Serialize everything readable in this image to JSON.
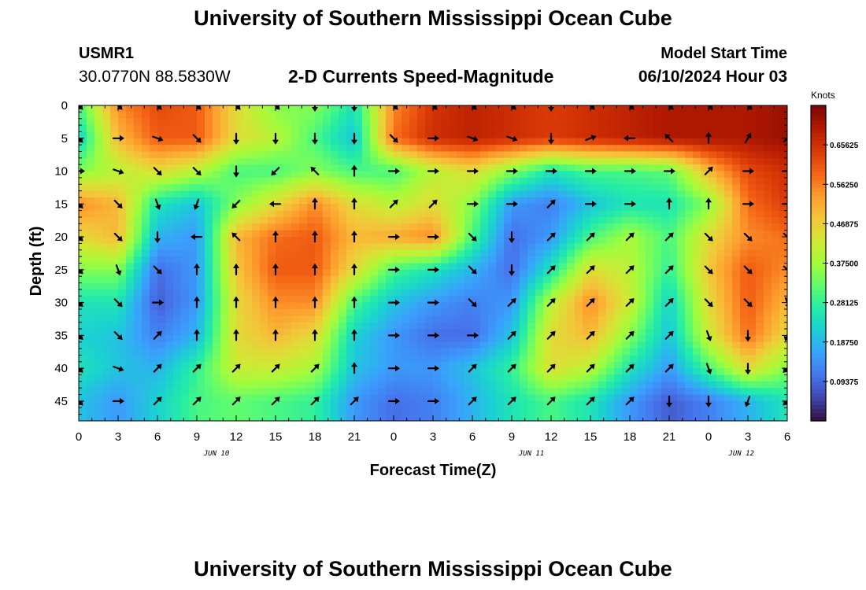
{
  "header": {
    "title": "University of Southern Mississippi Ocean Cube",
    "station_id": "USMR1",
    "station_coords": "30.0770N  88.5830W",
    "subtitle": "2-D Currents Speed-Magnitude",
    "model_start_label": "Model Start Time",
    "model_start_value": "06/10/2024 Hour 03"
  },
  "footer": {
    "title": "University of Southern Mississippi Ocean Cube"
  },
  "chart_data": {
    "type": "heatmap",
    "title": "2-D Currents Speed-Magnitude",
    "xlabel": "Forecast Time(Z)",
    "ylabel": "Depth (ft)",
    "x_tick_labels": [
      "0",
      "3",
      "6",
      "9",
      "12",
      "15",
      "18",
      "21",
      "0",
      "3",
      "6",
      "9",
      "12",
      "15",
      "18",
      "21",
      "0",
      "3",
      "6"
    ],
    "x_range_hours": [
      0,
      54
    ],
    "day_labels": [
      {
        "hour": 10.5,
        "label": "JUN 10"
      },
      {
        "hour": 34.5,
        "label": "JUN 11"
      },
      {
        "hour": 50.5,
        "label": "JUN 12"
      }
    ],
    "y_ticks": [
      0,
      5,
      10,
      15,
      20,
      25,
      30,
      35,
      40,
      45
    ],
    "y_range": [
      0,
      48
    ],
    "y_inverted": true,
    "colorbar": {
      "label": "Knots",
      "range": [
        0,
        0.75
      ],
      "tick_values": [
        0.09375,
        0.1875,
        0.28125,
        0.375,
        0.46875,
        0.5625,
        0.65625
      ],
      "tick_labels": [
        "0.09375",
        "0.18750",
        "0.28125",
        "0.37500",
        "0.46875",
        "0.56250",
        "0.65625"
      ],
      "colors": [
        "#30123b",
        "#4145ab",
        "#4675ed",
        "#39a2fc",
        "#1bcfd4",
        "#24eca6",
        "#61fc6c",
        "#a4fc3b",
        "#d1e834",
        "#f3c63a",
        "#fe9b2d",
        "#f36315",
        "#d93806",
        "#b11901",
        "#7a0402"
      ]
    },
    "speed_grid_knots": {
      "x_hours": [
        0,
        3,
        6,
        9,
        12,
        15,
        18,
        21,
        24,
        27,
        30,
        33,
        36,
        39,
        42,
        45,
        48,
        51,
        54
      ],
      "depth_ft": [
        0,
        5,
        10,
        15,
        20,
        25,
        30,
        35,
        40,
        45
      ],
      "values": [
        [
          0.3,
          0.55,
          0.62,
          0.6,
          0.45,
          0.35,
          0.35,
          0.25,
          0.55,
          0.65,
          0.68,
          0.66,
          0.64,
          0.66,
          0.68,
          0.7,
          0.7,
          0.7,
          0.72
        ],
        [
          0.22,
          0.5,
          0.6,
          0.6,
          0.45,
          0.4,
          0.3,
          0.2,
          0.58,
          0.66,
          0.68,
          0.66,
          0.64,
          0.66,
          0.68,
          0.7,
          0.7,
          0.7,
          0.72
        ],
        [
          0.35,
          0.4,
          0.45,
          0.4,
          0.3,
          0.3,
          0.35,
          0.3,
          0.3,
          0.4,
          0.45,
          0.35,
          0.25,
          0.3,
          0.3,
          0.32,
          0.5,
          0.62,
          0.66
        ],
        [
          0.55,
          0.5,
          0.25,
          0.2,
          0.35,
          0.45,
          0.55,
          0.45,
          0.4,
          0.45,
          0.35,
          0.15,
          0.12,
          0.2,
          0.25,
          0.25,
          0.35,
          0.58,
          0.64
        ],
        [
          0.45,
          0.5,
          0.18,
          0.15,
          0.5,
          0.58,
          0.6,
          0.5,
          0.52,
          0.55,
          0.3,
          0.1,
          0.15,
          0.3,
          0.38,
          0.3,
          0.45,
          0.55,
          0.58
        ],
        [
          0.35,
          0.35,
          0.1,
          0.15,
          0.48,
          0.6,
          0.6,
          0.45,
          0.3,
          0.25,
          0.18,
          0.1,
          0.25,
          0.45,
          0.4,
          0.28,
          0.48,
          0.6,
          0.55
        ],
        [
          0.25,
          0.25,
          0.08,
          0.15,
          0.45,
          0.55,
          0.55,
          0.3,
          0.2,
          0.15,
          0.12,
          0.15,
          0.4,
          0.55,
          0.42,
          0.22,
          0.45,
          0.6,
          0.5
        ],
        [
          0.22,
          0.2,
          0.12,
          0.18,
          0.45,
          0.5,
          0.45,
          0.22,
          0.15,
          0.1,
          0.1,
          0.2,
          0.45,
          0.5,
          0.35,
          0.2,
          0.42,
          0.58,
          0.45
        ],
        [
          0.25,
          0.2,
          0.18,
          0.28,
          0.42,
          0.42,
          0.38,
          0.2,
          0.15,
          0.15,
          0.2,
          0.28,
          0.45,
          0.4,
          0.25,
          0.15,
          0.3,
          0.45,
          0.35
        ],
        [
          0.2,
          0.15,
          0.22,
          0.3,
          0.32,
          0.3,
          0.28,
          0.15,
          0.1,
          0.12,
          0.18,
          0.25,
          0.3,
          0.25,
          0.15,
          0.08,
          0.12,
          0.18,
          0.25
        ]
      ]
    },
    "direction_grid_deg": {
      "x_hours": [
        0,
        3,
        6,
        9,
        12,
        15,
        18,
        21,
        24,
        27,
        30,
        33,
        36,
        39,
        42,
        45,
        48,
        51,
        54
      ],
      "depth_ft": [
        0,
        5,
        10,
        15,
        20,
        25,
        30,
        35,
        40,
        45
      ],
      "values": [
        [
          135,
          135,
          135,
          135,
          135,
          135,
          180,
          180,
          135,
          135,
          135,
          135,
          180,
          135,
          135,
          135,
          135,
          135,
          135
        ],
        [
          135,
          90,
          110,
          135,
          180,
          180,
          180,
          180,
          135,
          90,
          110,
          110,
          180,
          70,
          270,
          315,
          0,
          30,
          45
        ],
        [
          90,
          110,
          135,
          135,
          180,
          225,
          315,
          0,
          90,
          90,
          90,
          90,
          90,
          90,
          90,
          90,
          45,
          90,
          90
        ],
        [
          135,
          135,
          160,
          200,
          225,
          270,
          0,
          0,
          45,
          45,
          90,
          90,
          45,
          90,
          90,
          0,
          0,
          90,
          90
        ],
        [
          135,
          135,
          180,
          270,
          315,
          0,
          0,
          0,
          90,
          90,
          135,
          180,
          45,
          45,
          45,
          45,
          135,
          135,
          135
        ],
        [
          135,
          160,
          135,
          0,
          0,
          0,
          0,
          0,
          90,
          90,
          135,
          180,
          45,
          45,
          45,
          45,
          135,
          135,
          135
        ],
        [
          135,
          135,
          90,
          0,
          0,
          0,
          0,
          0,
          90,
          90,
          135,
          45,
          45,
          45,
          45,
          45,
          135,
          135,
          160
        ],
        [
          135,
          135,
          45,
          0,
          0,
          0,
          0,
          0,
          90,
          90,
          90,
          45,
          45,
          45,
          45,
          45,
          160,
          180,
          200
        ],
        [
          135,
          110,
          45,
          45,
          45,
          45,
          45,
          0,
          90,
          90,
          45,
          45,
          45,
          45,
          45,
          45,
          160,
          180,
          225
        ],
        [
          135,
          90,
          45,
          45,
          45,
          45,
          45,
          45,
          90,
          90,
          45,
          45,
          45,
          45,
          45,
          180,
          180,
          200,
          225
        ]
      ]
    }
  }
}
